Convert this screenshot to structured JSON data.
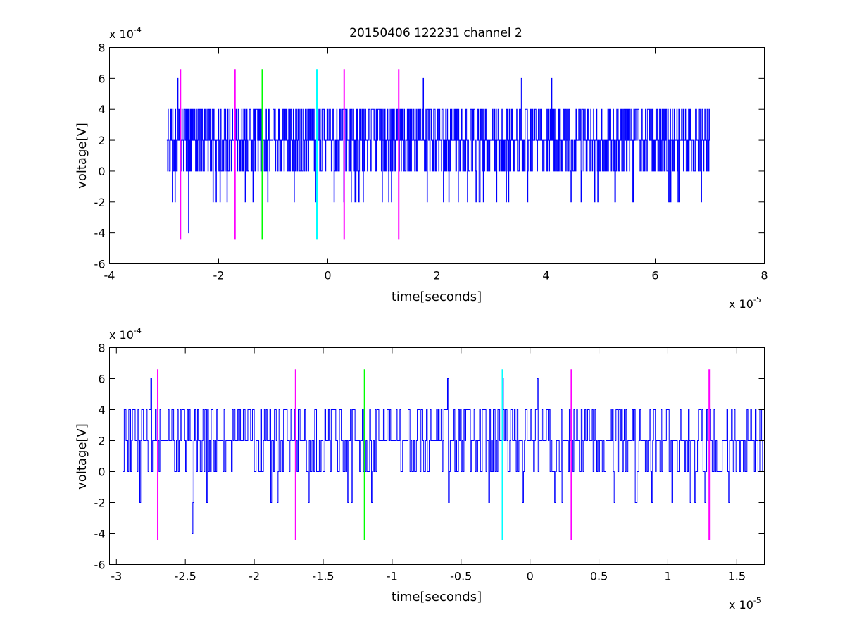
{
  "figure_title": "20150406 122231 channel 2",
  "colors": {
    "signal": "#0000ff",
    "magenta": "#ff00ff",
    "green": "#00ff00",
    "cyan": "#00ffff",
    "axes": "#000000"
  },
  "chart_data": [
    {
      "type": "line",
      "title": "20150406 122231 channel 2",
      "xlabel": "time[seconds]",
      "ylabel": "voltage[V]",
      "x_exponent_label": "x 10",
      "x_exponent": "-5",
      "y_exponent_label": "x 10",
      "y_exponent": "-4",
      "xlim": [
        -4,
        8
      ],
      "ylim": [
        -6,
        8
      ],
      "xticks": [
        "-4",
        "-2",
        "0",
        "2",
        "4",
        "6",
        "8"
      ],
      "yticks": [
        "-6",
        "-4",
        "-2",
        "0",
        "2",
        "4",
        "6",
        "8"
      ],
      "grid": false,
      "series": [
        {
          "color": "#0000ff",
          "style": "dense noisy step trace, quantized to 2e-4 V steps",
          "x_range": [
            -2.95,
            7.0
          ],
          "level_values": [
            -4,
            -2,
            0,
            2,
            4,
            6
          ],
          "baseline": 2,
          "peaks": [
            {
              "x": -2.75,
              "y": 6
            },
            {
              "x": 1.75,
              "y": 6
            },
            {
              "x": 3.55,
              "y": 6
            },
            {
              "x": 4.1,
              "y": 6
            }
          ],
          "troughs": [
            {
              "x": -2.55,
              "y": -4
            },
            {
              "x": -2.85,
              "y": -2
            },
            {
              "x": -1.85,
              "y": -2
            },
            {
              "x": -1.1,
              "y": -2
            },
            {
              "x": 6.25,
              "y": -2
            }
          ]
        }
      ],
      "vertical_markers": [
        {
          "x": -2.7,
          "color": "#ff00ff",
          "y_range": [
            -4.4,
            6.6
          ]
        },
        {
          "x": -1.7,
          "color": "#ff00ff",
          "y_range": [
            -4.4,
            6.6
          ]
        },
        {
          "x": -1.2,
          "color": "#00ff00",
          "y_range": [
            -4.4,
            6.6
          ]
        },
        {
          "x": -0.2,
          "color": "#00ffff",
          "y_range": [
            -4.4,
            6.6
          ]
        },
        {
          "x": 0.3,
          "color": "#ff00ff",
          "y_range": [
            -4.4,
            6.6
          ]
        },
        {
          "x": 1.3,
          "color": "#ff00ff",
          "y_range": [
            -4.4,
            6.6
          ]
        }
      ]
    },
    {
      "type": "line",
      "title": "",
      "xlabel": "time[seconds]",
      "ylabel": "voltage[V]",
      "x_exponent_label": "x 10",
      "x_exponent": "-5",
      "y_exponent_label": "x 10",
      "y_exponent": "-4",
      "xlim": [
        -3.05,
        1.7
      ],
      "ylim": [
        -6,
        8
      ],
      "xticks": [
        "-3",
        "-2.5",
        "-2",
        "-1.5",
        "-1",
        "-0.5",
        "0",
        "0.5",
        "1",
        "1.5"
      ],
      "yticks": [
        "-6",
        "-4",
        "-2",
        "0",
        "2",
        "4",
        "6",
        "8"
      ],
      "grid": false,
      "series": [
        {
          "color": "#0000ff",
          "style": "zoomed noisy step trace, quantized to 2e-4 V steps",
          "x_range": [
            -2.95,
            1.7
          ],
          "level_values": [
            -4,
            -2,
            0,
            2,
            4,
            6
          ],
          "baseline": 2,
          "peaks": [
            {
              "x": -2.75,
              "y": 6
            },
            {
              "x": -0.6,
              "y": 6
            },
            {
              "x": -0.2,
              "y": 6
            },
            {
              "x": 0.05,
              "y": 6
            }
          ],
          "troughs": [
            {
              "x": -2.45,
              "y": -4
            },
            {
              "x": -2.83,
              "y": -2
            },
            {
              "x": -1.88,
              "y": -2
            },
            {
              "x": -1.15,
              "y": -2
            },
            {
              "x": 1.16,
              "y": -2
            },
            {
              "x": 1.27,
              "y": -2
            }
          ]
        }
      ],
      "vertical_markers": [
        {
          "x": -2.7,
          "color": "#ff00ff",
          "y_range": [
            -4.4,
            6.6
          ]
        },
        {
          "x": -1.7,
          "color": "#ff00ff",
          "y_range": [
            -4.4,
            6.6
          ]
        },
        {
          "x": -1.2,
          "color": "#00ff00",
          "y_range": [
            -4.4,
            6.6
          ]
        },
        {
          "x": -0.2,
          "color": "#00ffff",
          "y_range": [
            -4.4,
            6.6
          ]
        },
        {
          "x": 0.3,
          "color": "#ff00ff",
          "y_range": [
            -4.4,
            6.6
          ]
        },
        {
          "x": 1.3,
          "color": "#ff00ff",
          "y_range": [
            -4.4,
            6.6
          ]
        }
      ]
    }
  ]
}
